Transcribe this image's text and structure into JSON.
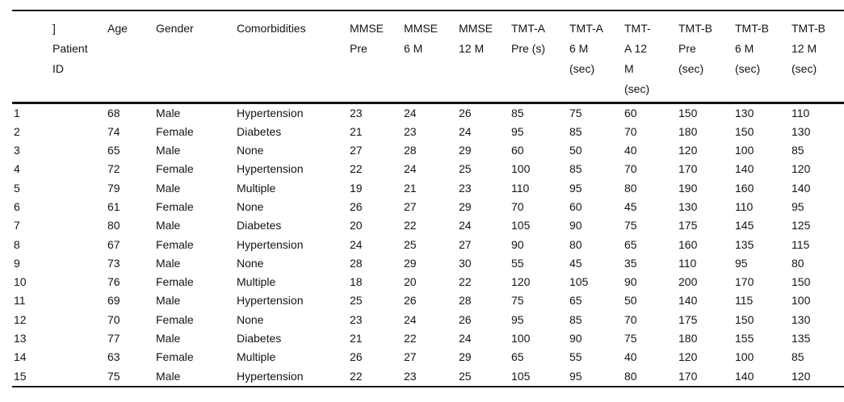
{
  "colors": {
    "background": "#ffffff",
    "text": "#141414",
    "rule": "#141414"
  },
  "table": {
    "columns": [
      {
        "id": "patient_id",
        "label": "]\nPatient\nID"
      },
      {
        "id": "age",
        "label": "Age"
      },
      {
        "id": "gender",
        "label": "Gender"
      },
      {
        "id": "comorbidities",
        "label": "Comorbidities"
      },
      {
        "id": "mmse_pre",
        "label": "MMSE\nPre"
      },
      {
        "id": "mmse_6m",
        "label": "MMSE\n6 M"
      },
      {
        "id": "mmse_12m",
        "label": "MMSE\n12 M"
      },
      {
        "id": "tmta_pre",
        "label": "TMT-A\nPre (s)"
      },
      {
        "id": "tmta_6m",
        "label": "TMT-A\n6 M\n(sec)"
      },
      {
        "id": "tmta_12m",
        "label": "TMT-\nA 12\nM\n(sec)"
      },
      {
        "id": "tmtb_pre",
        "label": "TMT-B\nPre\n(sec)"
      },
      {
        "id": "tmtb_6m",
        "label": "TMT-B\n6 M\n(sec)"
      },
      {
        "id": "tmtb_12m",
        "label": "TMT-B\n12 M\n(sec)"
      }
    ],
    "rows": [
      [
        "1",
        "68",
        "Male",
        "Hypertension",
        "23",
        "24",
        "26",
        "85",
        "75",
        "60",
        "150",
        "130",
        "110"
      ],
      [
        "2",
        "74",
        "Female",
        "Diabetes",
        "21",
        "23",
        "24",
        "95",
        "85",
        "70",
        "180",
        "150",
        "130"
      ],
      [
        "3",
        "65",
        "Male",
        "None",
        "27",
        "28",
        "29",
        "60",
        "50",
        "40",
        "120",
        "100",
        "85"
      ],
      [
        "4",
        "72",
        "Female",
        "Hypertension",
        "22",
        "24",
        "25",
        "100",
        "85",
        "70",
        "170",
        "140",
        "120"
      ],
      [
        "5",
        "79",
        "Male",
        "Multiple",
        "19",
        "21",
        "23",
        "110",
        "95",
        "80",
        "190",
        "160",
        "140"
      ],
      [
        "6",
        "61",
        "Female",
        "None",
        "26",
        "27",
        "29",
        "70",
        "60",
        "45",
        "130",
        "110",
        "95"
      ],
      [
        "7",
        "80",
        "Male",
        "Diabetes",
        "20",
        "22",
        "24",
        "105",
        "90",
        "75",
        "175",
        "145",
        "125"
      ],
      [
        "8",
        "67",
        "Female",
        "Hypertension",
        "24",
        "25",
        "27",
        "90",
        "80",
        "65",
        "160",
        "135",
        "115"
      ],
      [
        "9",
        "73",
        "Male",
        "None",
        "28",
        "29",
        "30",
        "55",
        "45",
        "35",
        "110",
        "95",
        "80"
      ],
      [
        "10",
        "76",
        "Female",
        "Multiple",
        "18",
        "20",
        "22",
        "120",
        "105",
        "90",
        "200",
        "170",
        "150"
      ],
      [
        "11",
        "69",
        "Male",
        "Hypertension",
        "25",
        "26",
        "28",
        "75",
        "65",
        "50",
        "140",
        "115",
        "100"
      ],
      [
        "12",
        "70",
        "Female",
        "None",
        "23",
        "24",
        "26",
        "95",
        "85",
        "70",
        "175",
        "150",
        "130"
      ],
      [
        "13",
        "77",
        "Male",
        "Diabetes",
        "21",
        "22",
        "24",
        "100",
        "90",
        "75",
        "180",
        "155",
        "135"
      ],
      [
        "14",
        "63",
        "Female",
        "Multiple",
        "26",
        "27",
        "29",
        "65",
        "55",
        "40",
        "120",
        "100",
        "85"
      ],
      [
        "15",
        "75",
        "Male",
        "Hypertension",
        "22",
        "23",
        "25",
        "105",
        "95",
        "80",
        "170",
        "140",
        "120"
      ]
    ]
  }
}
